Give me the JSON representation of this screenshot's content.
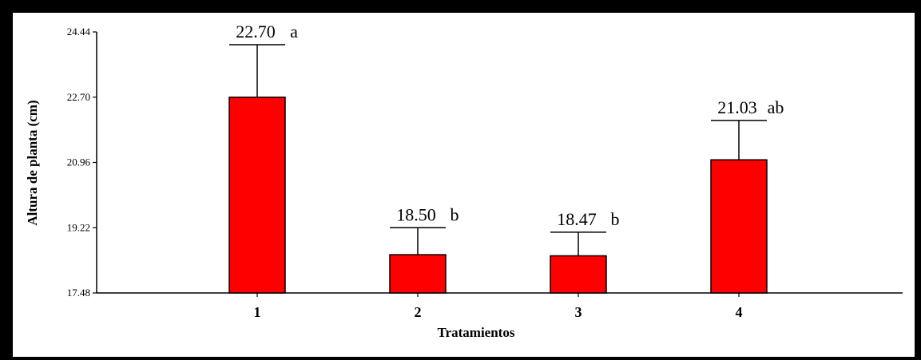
{
  "colors": {
    "bar_fill": "#ff0000",
    "bar_stroke": "#000000",
    "frame": "#000000"
  },
  "chart_data": {
    "type": "bar",
    "categories": [
      "1",
      "2",
      "3",
      "4"
    ],
    "values": [
      22.7,
      18.5,
      18.47,
      21.03
    ],
    "error_upper": [
      24.1,
      19.22,
      19.1,
      22.08
    ],
    "data_labels": [
      "22.70",
      "18.50",
      "18.47",
      "21.03"
    ],
    "significance_letters": [
      "a",
      "b",
      "b",
      "ab"
    ],
    "xlabel": "Tratamientos",
    "ylabel": "Altura de planta (cm)",
    "ylim": [
      17.48,
      24.44
    ],
    "yticks": [
      "24.44",
      "22.70",
      "20.96",
      "19.22",
      "17.48"
    ],
    "grid": false,
    "legend": "none"
  }
}
